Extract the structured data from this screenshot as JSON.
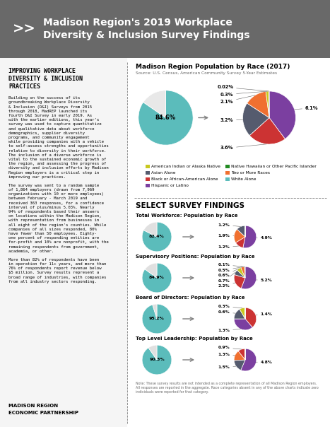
{
  "title": "Madison Region's 2019 Workplace\nDiversity & Inclusion Survey Findings",
  "annotations": [
    ">>",
    "IMPROVING WORKPLACE\nDIVERSITY & INCLUSION\nPRACTICES",
    "Building on the success of its\ngroundbreaking Workplace Diversity\n& Inclusion (D&I) Surveys from 2015\nthrough 2018, MadREP launched its\nfourth D&I Survey in early 2019. As\nwith the earlier editions, this year's\nsurvey was used to capture quantitative\nand qualitative data about workforce\ndemographics, supplier diversity\nprograms, and community engagement\nwhile providing companies with a vehicle\nto self-assess strengths and opportunities\nrelative to diversity in their workforce.\nThe inclusion of a diverse workforce is\nvital to the sustained economic growth of\nthe region, and assessing the progress of\ndiversity and inclusion efforts by Madison\nRegion employers is a critical step in\nimproving our practices.",
    "The survey was sent to a random sample\nof 1,864 employers (drawn from 7,969\norganizations with 10 or more employees)\nbetween February - March 2019 and\nreceived 363 responses, for a confidence\ninterval of plus/minus 5.03%. Nearly\n94% of respondents based their answers\non locations within the Madison Region,\nwith representation from businesses in\nall eight of the region's counties. While\ncompanies of all sizes responded, 80%\nhave fewer than 50 employees. Eighty-\none percent of responding entities are\nfor-profit and 10% are nonprofit, with the\nremaining respondents from government,\nacademia, or other.",
    "More than 82% of respondents have been\nin operation for 11+ years, and more than\n76% of respondents report revenue below\n$5 million. Survey results represent a\nbroad range of industries, with companies\nfrom all industry sectors responding.",
    "MADISON REGION",
    "ECONOMIC PARTNERSHIP",
    "SELECT SURVEY FINDINGS",
    "Note: These survey results are not intended as a complete representation of all Madison Region employers.\nAll responses are reported in the aggregate. Race categories absent in any of the above charts indicate zero\nindividuals were reported for that category."
  ],
  "chart_data": [
    {
      "type": "pie",
      "title": "Madison Region Population by Race (2017)",
      "subtitle": "Source: U.S. Census, American Community Survey 5-Year Estimates",
      "values": [
        84.6,
        15.4
      ],
      "colors": [
        "#5bbcbb",
        "#e8e8e8"
      ],
      "value_labels": [
        "84.6%",
        null
      ],
      "data_labels": true
    },
    {
      "type": "pie",
      "values": [
        6.1,
        3.6,
        3.2,
        2.1,
        0.3,
        0.02
      ],
      "colors": [
        "#7b3fa0",
        "#cc3333",
        "#555b6e",
        "#f07030",
        "#c8c820",
        "#f07030"
      ],
      "value_labels": [
        "6.1%",
        "3.6%",
        "3.2%",
        "2.1%",
        "0.3%",
        "0.02%"
      ],
      "data_labels": true,
      "series": [
        {
          "name": "American Indian or Alaska Native",
          "color": "#c8c820"
        },
        {
          "name": "Asian Alone",
          "color": "#555b6e"
        },
        {
          "name": "Black or African-American Alone",
          "color": "#cc3333"
        },
        {
          "name": "Hispanic or Latino",
          "color": "#7b3fa0"
        },
        {
          "name": "Native Hawaiian or Other Pacific Islander",
          "color": "#228B22"
        },
        {
          "name": "Two or More Races",
          "color": "#f07030"
        },
        {
          "name": "White Alone",
          "color": "#5bbcbb"
        }
      ],
      "legend": "center"
    },
    {
      "type": "pie",
      "title": "Total Workforce: Population by Race",
      "values": [
        82.4,
        17.6
      ],
      "colors": [
        "#5bbcbb",
        "#e0e0e0"
      ],
      "value_labels": [
        "82.4%",
        null
      ],
      "data_labels": true
    },
    {
      "type": "pie",
      "values": [
        4.9,
        1.2,
        1.9,
        1.2,
        0.001,
        0.001
      ],
      "colors": [
        "#7b3fa0",
        "#cc3333",
        "#f07030",
        "#555b6e",
        "#c8c820",
        "#228B22"
      ],
      "value_labels": [
        "4.9%",
        "1.2%",
        "1.9%",
        "1.2%",
        null,
        null
      ],
      "data_labels": true
    },
    {
      "type": "pie",
      "title": "Supervisory Positions: Population by Race",
      "values": [
        84.9,
        15.1
      ],
      "colors": [
        "#5bbcbb",
        "#e0e0e0"
      ],
      "value_labels": [
        "84.9%",
        null
      ],
      "data_labels": true
    },
    {
      "type": "pie",
      "values": [
        5.2,
        2.2,
        0.7,
        0.6,
        0.5,
        0.1
      ],
      "colors": [
        "#7b3fa0",
        "#cc3333",
        "#555b6e",
        "#c8c820",
        "#f07030",
        "#228B22"
      ],
      "value_labels": [
        "5.2%",
        "2.2%",
        "0.7%",
        "0.6%",
        "0.5%",
        "0.1%"
      ],
      "data_labels": true
    },
    {
      "type": "pie",
      "title": "Board of Directors: Population by Race",
      "values": [
        95.2,
        4.8
      ],
      "colors": [
        "#5bbcbb",
        "#e0e0e0"
      ],
      "value_labels": [
        "95.2%",
        null
      ],
      "data_labels": true
    },
    {
      "type": "pie",
      "values": [
        1.4,
        1.3,
        0.6,
        0.3,
        0.001,
        0.001
      ],
      "colors": [
        "#cc3333",
        "#7b3fa0",
        "#555b6e",
        "#c8c820",
        "#f07030",
        "#228B22"
      ],
      "value_labels": [
        "1.4%",
        "1.3%",
        "0.6%",
        "0.3%",
        null,
        null
      ],
      "data_labels": true
    },
    {
      "type": "pie",
      "title": "Top Level Leadership: Population by Race",
      "values": [
        90.3,
        9.7
      ],
      "colors": [
        "#5bbcbb",
        "#e0e0e0"
      ],
      "value_labels": [
        "90.3%",
        null
      ],
      "data_labels": true
    },
    {
      "type": "pie",
      "values": [
        4.8,
        1.5,
        1.3,
        0.9,
        0.001,
        0.001
      ],
      "colors": [
        "#7b3fa0",
        "#555b6e",
        "#f07030",
        "#cc3333",
        "#c8c820",
        "#228B22"
      ],
      "value_labels": [
        "4.8%",
        "1.5%",
        "1.3%",
        "0.9%",
        null,
        null
      ],
      "data_labels": true
    }
  ]
}
